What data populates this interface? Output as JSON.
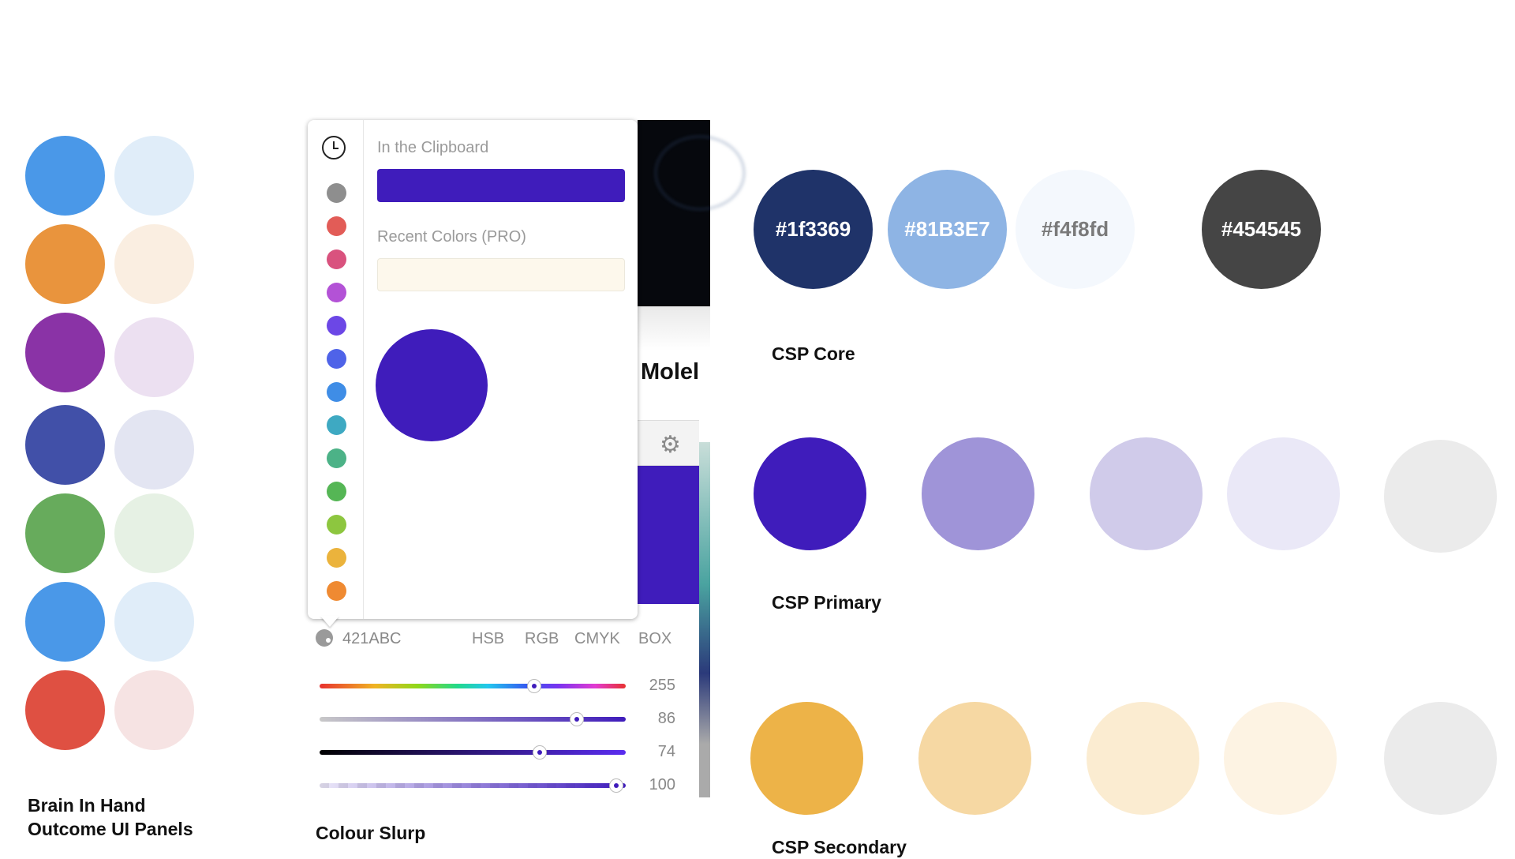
{
  "brain_in_hand": {
    "caption_line1": "Brain In Hand",
    "caption_line2": "Outcome UI Panels",
    "colors": [
      "#4a98e8",
      "#e9943d",
      "#8a33a6",
      "#4150a8",
      "#67ab5c",
      "#4a98e8",
      "#df5042"
    ],
    "tints": [
      "#e0edf9",
      "#faeee1",
      "#ece0f1",
      "#e3e5f2",
      "#e6f1e4",
      "#e0edf9",
      "#f6e3e3"
    ]
  },
  "colour_slurp": {
    "caption": "Colour Slurp",
    "clipboard_label": "In the Clipboard",
    "clipboard_color": "#3f1cbb",
    "recent_label": "Recent Colors (PRO)",
    "history_colors": [
      "#8e8e8e",
      "#e25c57",
      "#d9527e",
      "#b352d6",
      "#6c47e6",
      "#4f63e8",
      "#3f8de6",
      "#3ea9c2",
      "#4cb287",
      "#55b655",
      "#8dc63f",
      "#ebb33c",
      "#ef8a32"
    ],
    "hex_value": "421ABC",
    "modes": [
      "HSB",
      "RGB",
      "CMYK",
      "BOX"
    ],
    "active_mode": "HSB",
    "slider_values": [
      "255",
      "86",
      "74",
      "100"
    ],
    "slider_levels": [
      0.7,
      0.84,
      0.72,
      0.97
    ],
    "background_text": "Molel"
  },
  "csp_core": {
    "caption": "CSP Core",
    "swatches": [
      {
        "label": "#1f3369",
        "color": "#1f3369",
        "text_color": "#ffffff"
      },
      {
        "label": "#81B3E7",
        "color": "#8eb4e4",
        "text_color": "#ffffff"
      },
      {
        "label": "#f4f8fd",
        "color": "#f4f8fd",
        "text_color": "#7a7a7a"
      },
      {
        "label": "#454545",
        "color": "#454545",
        "text_color": "#ffffff"
      }
    ]
  },
  "csp_primary": {
    "caption": "CSP Primary",
    "colors": [
      "#3f1cbb",
      "#9f94d8",
      "#d0cbea",
      "#eae8f7",
      "#ebebeb"
    ]
  },
  "csp_secondary": {
    "caption": "CSP Secondary",
    "colors": [
      "#edb348",
      "#f6d8a3",
      "#fbecd1",
      "#fdf3e3",
      "#ebebeb"
    ]
  }
}
